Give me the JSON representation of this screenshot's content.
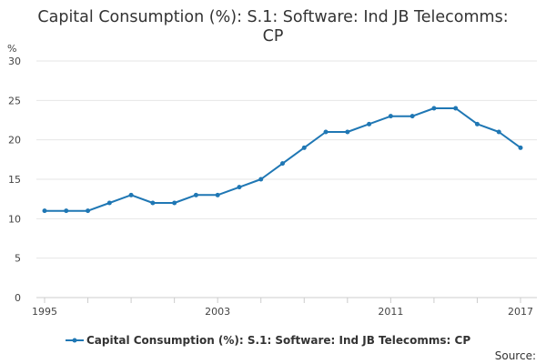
{
  "chart_data": {
    "type": "line",
    "title_lines": [
      "Capital Consumption (%): S.1: Software: Ind JB Telecomms:",
      "CP"
    ],
    "ylabel": "%",
    "ylim": [
      0,
      30
    ],
    "yticks": [
      0,
      5,
      10,
      15,
      20,
      25,
      30
    ],
    "x": [
      1995,
      1996,
      1997,
      1998,
      1999,
      2000,
      2001,
      2002,
      2003,
      2004,
      2005,
      2006,
      2007,
      2008,
      2009,
      2010,
      2011,
      2012,
      2013,
      2014,
      2015,
      2016,
      2017
    ],
    "xtick_labels": [
      "1995",
      "2003",
      "2011",
      "2017"
    ],
    "grid": true,
    "series": [
      {
        "name": "Capital Consumption (%): S.1: Software: Ind JB Telecomms: CP",
        "color": "#1f77b4",
        "values": [
          11,
          11,
          11,
          12,
          13,
          12,
          12,
          13,
          13,
          14,
          15,
          17,
          19,
          21,
          21,
          22,
          23,
          23,
          24,
          24,
          22,
          21,
          19
        ]
      }
    ],
    "legend_position": "bottom-center",
    "source_label": "Source:"
  }
}
